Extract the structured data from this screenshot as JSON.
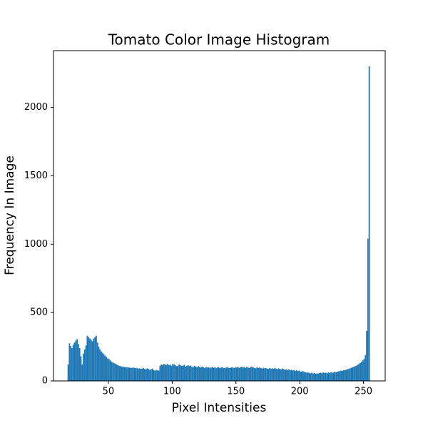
{
  "chart_data": {
    "type": "histogram",
    "title": "Tomato Color Image Histogram",
    "xlabel": "Pixel Intensities",
    "ylabel": "Frequency In Image",
    "color": "#1f77b4",
    "bins": [
      18,
      19,
      20,
      21,
      22,
      23,
      24,
      25,
      26,
      27,
      28,
      29,
      30,
      31,
      32,
      33,
      34,
      35,
      36,
      37,
      38,
      39,
      40,
      41,
      42,
      43,
      44,
      45,
      46,
      47,
      48,
      49,
      50,
      51,
      52,
      53,
      54,
      55,
      56,
      57,
      58,
      59,
      60,
      61,
      62,
      63,
      64,
      65,
      66,
      67,
      68,
      69,
      70,
      71,
      72,
      73,
      74,
      75,
      76,
      77,
      78,
      79,
      80,
      81,
      82,
      83,
      84,
      85,
      86,
      87,
      88,
      89,
      90,
      91,
      92,
      93,
      94,
      95,
      96,
      97,
      98,
      99,
      100,
      101,
      102,
      103,
      104,
      105,
      106,
      107,
      108,
      109,
      110,
      111,
      112,
      113,
      114,
      115,
      116,
      117,
      118,
      119,
      120,
      121,
      122,
      123,
      124,
      125,
      126,
      127,
      128,
      129,
      130,
      131,
      132,
      133,
      134,
      135,
      136,
      137,
      138,
      139,
      140,
      141,
      142,
      143,
      144,
      145,
      146,
      147,
      148,
      149,
      150,
      151,
      152,
      153,
      154,
      155,
      156,
      157,
      158,
      159,
      160,
      161,
      162,
      163,
      164,
      165,
      166,
      167,
      168,
      169,
      170,
      171,
      172,
      173,
      174,
      175,
      176,
      177,
      178,
      179,
      180,
      181,
      182,
      183,
      184,
      185,
      186,
      187,
      188,
      189,
      190,
      191,
      192,
      193,
      194,
      195,
      196,
      197,
      198,
      199,
      200,
      201,
      202,
      203,
      204,
      205,
      206,
      207,
      208,
      209,
      210,
      211,
      212,
      213,
      214,
      215,
      216,
      217,
      218,
      219,
      220,
      221,
      222,
      223,
      224,
      225,
      226,
      227,
      228,
      229,
      230,
      231,
      232,
      233,
      234,
      235,
      236,
      237,
      238,
      239,
      240,
      241,
      242,
      243,
      244,
      245,
      246,
      247,
      248,
      249,
      250,
      251,
      252,
      253,
      254,
      255
    ],
    "values": [
      120,
      275,
      255,
      240,
      265,
      280,
      295,
      305,
      270,
      240,
      180,
      120,
      200,
      230,
      260,
      330,
      320,
      310,
      300,
      290,
      310,
      320,
      330,
      280,
      250,
      230,
      215,
      205,
      195,
      185,
      175,
      165,
      160,
      150,
      140,
      135,
      130,
      125,
      120,
      115,
      110,
      108,
      105,
      105,
      102,
      100,
      100,
      98,
      98,
      96,
      95,
      100,
      95,
      92,
      95,
      90,
      92,
      88,
      90,
      95,
      88,
      85,
      92,
      88,
      80,
      85,
      90,
      80,
      75,
      80,
      78,
      75,
      110,
      120,
      115,
      125,
      120,
      118,
      125,
      115,
      120,
      110,
      125,
      120,
      115,
      108,
      110,
      120,
      115,
      110,
      112,
      118,
      105,
      110,
      115,
      108,
      112,
      105,
      100,
      110,
      105,
      100,
      108,
      102,
      98,
      105,
      100,
      95,
      102,
      98,
      100,
      95,
      98,
      102,
      96,
      100,
      95,
      98,
      100,
      94,
      98,
      100,
      95,
      92,
      98,
      100,
      96,
      94,
      100,
      98,
      95,
      100,
      98,
      102,
      96,
      100,
      104,
      98,
      100,
      96,
      102,
      98,
      95,
      100,
      104,
      98,
      96,
      92,
      100,
      95,
      98,
      94,
      90,
      96,
      92,
      95,
      90,
      88,
      94,
      90,
      92,
      88,
      95,
      90,
      86,
      92,
      88,
      84,
      90,
      86,
      82,
      86,
      80,
      84,
      78,
      82,
      76,
      80,
      74,
      78,
      72,
      76,
      70,
      68,
      72,
      66,
      64,
      60,
      62,
      58,
      56,
      60,
      54,
      58,
      52,
      56,
      54,
      58,
      60,
      56,
      62,
      58,
      60,
      56,
      62,
      58,
      64,
      60,
      62,
      66,
      64,
      68,
      70,
      72,
      76,
      74,
      78,
      80,
      82,
      86,
      88,
      92,
      96,
      100,
      104,
      108,
      112,
      118,
      125,
      132,
      140,
      150,
      160,
      190,
      365,
      1040,
      2300
    ],
    "xlim": [
      7,
      267
    ],
    "ylim": [
      0,
      2415
    ],
    "xticks": [
      50,
      100,
      150,
      200,
      250
    ],
    "yticks": [
      0,
      500,
      1000,
      1500,
      2000
    ]
  }
}
